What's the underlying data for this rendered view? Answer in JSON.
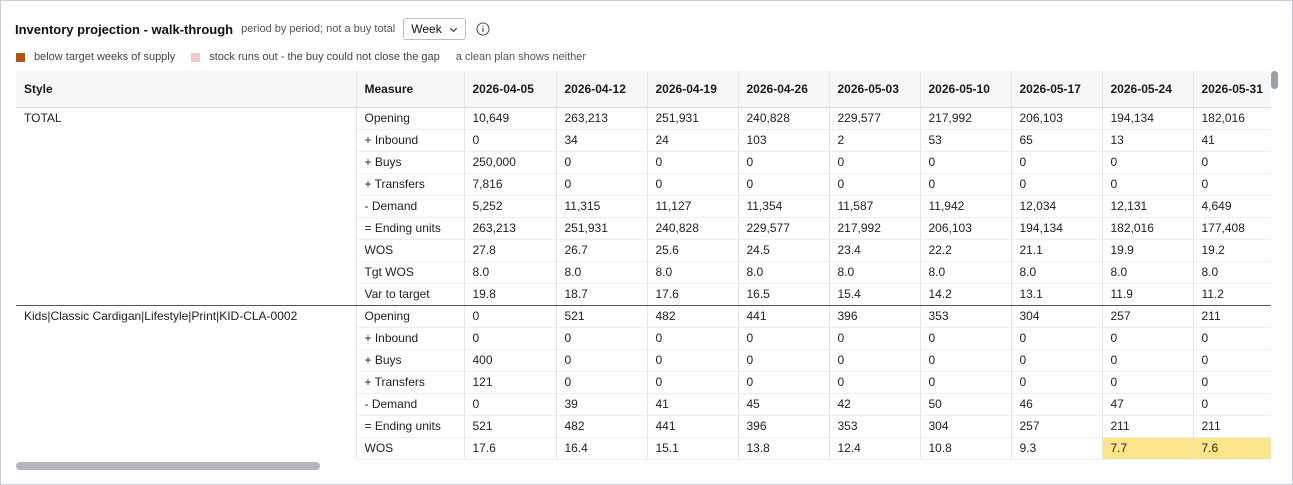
{
  "header": {
    "title": "Inventory projection - walk-through",
    "subtitle": "period by period; not a buy total",
    "period_select": "Week",
    "info_icon": "info-circle-icon"
  },
  "legend": {
    "items": [
      {
        "label": "below target weeks of supply",
        "color": "#b8500e"
      },
      {
        "label": "stock runs out - the buy could not close the gap",
        "color": "#f7c6c6"
      }
    ],
    "note": "a clean plan shows neither"
  },
  "grid": {
    "style_header": "Style",
    "measure_header": "Measure",
    "periods": [
      "2026-04-05",
      "2026-04-12",
      "2026-04-19",
      "2026-04-26",
      "2026-05-03",
      "2026-05-10",
      "2026-05-17",
      "2026-05-24",
      "2026-05-31"
    ],
    "highlight_color": "#fde68a",
    "blocks": [
      {
        "style": "TOTAL",
        "rows": [
          {
            "measure": "Opening",
            "values": [
              "10,649",
              "263,213",
              "251,931",
              "240,828",
              "229,577",
              "217,992",
              "206,103",
              "194,134",
              "182,016"
            ]
          },
          {
            "measure": "+ Inbound",
            "values": [
              "0",
              "34",
              "24",
              "103",
              "2",
              "53",
              "65",
              "13",
              "41"
            ]
          },
          {
            "measure": "+ Buys",
            "values": [
              "250,000",
              "0",
              "0",
              "0",
              "0",
              "0",
              "0",
              "0",
              "0"
            ]
          },
          {
            "measure": "+ Transfers",
            "values": [
              "7,816",
              "0",
              "0",
              "0",
              "0",
              "0",
              "0",
              "0",
              "0"
            ]
          },
          {
            "measure": "- Demand",
            "values": [
              "5,252",
              "11,315",
              "11,127",
              "11,354",
              "11,587",
              "11,942",
              "12,034",
              "12,131",
              "4,649"
            ]
          },
          {
            "measure": "= Ending units",
            "values": [
              "263,213",
              "251,931",
              "240,828",
              "229,577",
              "217,992",
              "206,103",
              "194,134",
              "182,016",
              "177,408"
            ]
          },
          {
            "measure": "WOS",
            "values": [
              "27.8",
              "26.7",
              "25.6",
              "24.5",
              "23.4",
              "22.2",
              "21.1",
              "19.9",
              "19.2"
            ]
          },
          {
            "measure": "Tgt WOS",
            "values": [
              "8.0",
              "8.0",
              "8.0",
              "8.0",
              "8.0",
              "8.0",
              "8.0",
              "8.0",
              "8.0"
            ]
          },
          {
            "measure": "Var to target",
            "values": [
              "19.8",
              "18.7",
              "17.6",
              "16.5",
              "15.4",
              "14.2",
              "13.1",
              "11.9",
              "11.2"
            ]
          }
        ]
      },
      {
        "style": "Kids|Classic Cardigan|Lifestyle|Print|KID-CLA-0002",
        "rows": [
          {
            "measure": "Opening",
            "values": [
              "0",
              "521",
              "482",
              "441",
              "396",
              "353",
              "304",
              "257",
              "211"
            ]
          },
          {
            "measure": "+ Inbound",
            "values": [
              "0",
              "0",
              "0",
              "0",
              "0",
              "0",
              "0",
              "0",
              "0"
            ]
          },
          {
            "measure": "+ Buys",
            "values": [
              "400",
              "0",
              "0",
              "0",
              "0",
              "0",
              "0",
              "0",
              "0"
            ]
          },
          {
            "measure": "+ Transfers",
            "values": [
              "121",
              "0",
              "0",
              "0",
              "0",
              "0",
              "0",
              "0",
              "0"
            ]
          },
          {
            "measure": "- Demand",
            "values": [
              "0",
              "39",
              "41",
              "45",
              "42",
              "50",
              "46",
              "47",
              "0"
            ]
          },
          {
            "measure": "= Ending units",
            "values": [
              "521",
              "482",
              "441",
              "396",
              "353",
              "304",
              "257",
              "211",
              "211"
            ]
          },
          {
            "measure": "WOS",
            "values": [
              "17.6",
              "16.4",
              "15.1",
              "13.8",
              "12.4",
              "10.8",
              "9.3",
              "7.7",
              "7.6"
            ],
            "highlight": [
              7,
              8
            ]
          }
        ]
      }
    ]
  }
}
